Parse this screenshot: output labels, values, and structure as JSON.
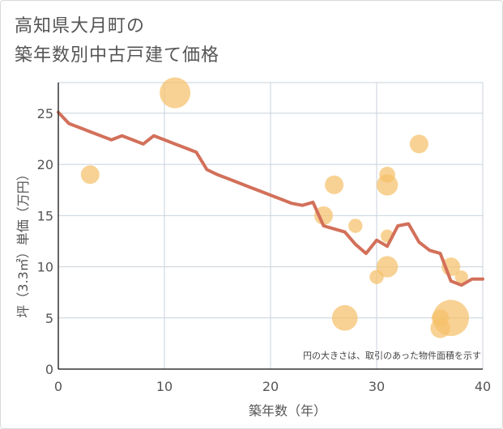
{
  "chart_data": {
    "type": "scatter",
    "title_lines": [
      "高知県大月町の",
      "築年数別中古戸建て価格"
    ],
    "xlabel": "築年数（年）",
    "ylabel": "坪（3.3㎡）単価（万円）",
    "xlim": [
      0,
      40
    ],
    "ylim": [
      0,
      28
    ],
    "xticks": [
      0,
      10,
      20,
      30,
      40
    ],
    "yticks": [
      0,
      5,
      10,
      15,
      20,
      25
    ],
    "grid": true,
    "annotation": "円の大きさは、取引のあった物件面積を示す",
    "colors": {
      "bubble": "#f5c06b",
      "line": "#d2705a",
      "grid": "#c8d2dc",
      "text": "#555555"
    },
    "series": [
      {
        "type": "bubble",
        "points": [
          {
            "x": 3,
            "y": 19,
            "size": 1
          },
          {
            "x": 11,
            "y": 27,
            "size": 4
          },
          {
            "x": 25,
            "y": 15,
            "size": 1
          },
          {
            "x": 26,
            "y": 18,
            "size": 1
          },
          {
            "x": 27,
            "y": 5,
            "size": 2.5
          },
          {
            "x": 28,
            "y": 14,
            "size": 0.4
          },
          {
            "x": 30,
            "y": 9,
            "size": 0.4
          },
          {
            "x": 31,
            "y": 19,
            "size": 0.6
          },
          {
            "x": 31,
            "y": 18,
            "size": 1.5
          },
          {
            "x": 31,
            "y": 13,
            "size": 0.3
          },
          {
            "x": 31,
            "y": 10,
            "size": 1.5
          },
          {
            "x": 34,
            "y": 22,
            "size": 1
          },
          {
            "x": 36,
            "y": 5,
            "size": 0.8
          },
          {
            "x": 36,
            "y": 4,
            "size": 1.2
          },
          {
            "x": 37,
            "y": 10,
            "size": 1
          },
          {
            "x": 37,
            "y": 5,
            "size": 6
          },
          {
            "x": 38,
            "y": 9,
            "size": 0.3
          }
        ]
      },
      {
        "type": "line",
        "x": [
          0,
          1,
          2,
          3,
          4,
          5,
          6,
          7,
          8,
          9,
          10,
          11,
          12,
          13,
          14,
          15,
          16,
          17,
          18,
          19,
          20,
          21,
          22,
          23,
          24,
          25,
          26,
          27,
          28,
          29,
          30,
          31,
          32,
          33,
          34,
          35,
          36,
          37,
          38,
          39,
          40
        ],
        "y": [
          25.1,
          24.0,
          23.6,
          23.2,
          22.8,
          22.4,
          22.8,
          22.4,
          22.0,
          22.8,
          22.4,
          22.0,
          21.6,
          21.2,
          19.5,
          19.0,
          18.6,
          18.2,
          17.8,
          17.4,
          17.0,
          16.6,
          16.2,
          16.0,
          16.3,
          14.0,
          13.7,
          13.4,
          12.2,
          11.3,
          12.6,
          12.0,
          14.0,
          14.2,
          12.4,
          11.6,
          11.3,
          8.6,
          8.2,
          8.8,
          8.8
        ]
      }
    ]
  }
}
